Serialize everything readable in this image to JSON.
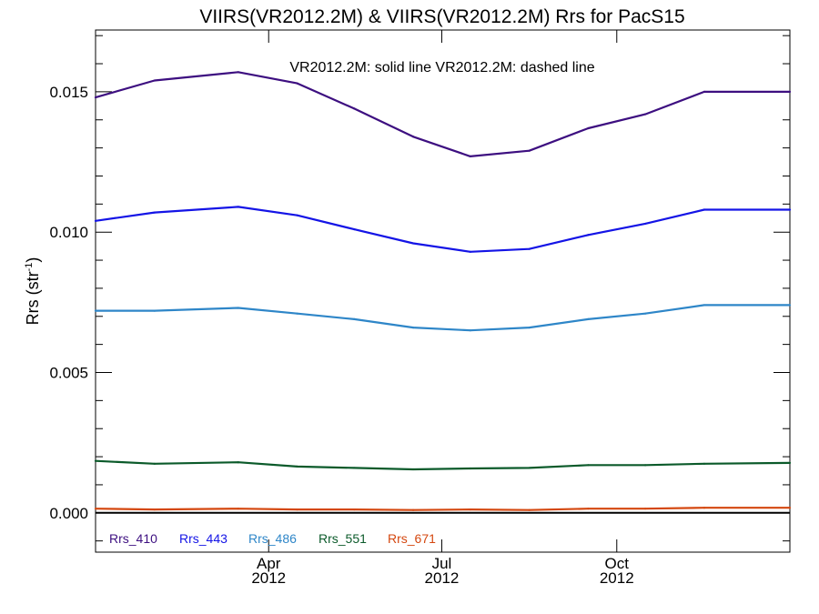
{
  "chart_data": {
    "type": "line",
    "title": "VIIRS(VR2012.2M) & VIIRS(VR2012.2M)  Rrs for PacS15",
    "annotation": "VR2012.2M: solid line   VR2012.2M: dashed line",
    "ylabel": "Rrs (str",
    "ylabel_sup": "-1",
    "ylabel_close": ")",
    "ylim": [
      -0.0014,
      0.0172
    ],
    "y_ticks": [
      0.0,
      0.005,
      0.01,
      0.015
    ],
    "y_tick_labels": [
      "0.000",
      "0.005",
      "0.010",
      "0.015"
    ],
    "xlim": [
      "2012-01-01",
      "2012-12-31"
    ],
    "x_ticks": [
      {
        "date": "2012-04-01",
        "month": "Apr",
        "year": "2012"
      },
      {
        "date": "2012-07-01",
        "month": "Jul",
        "year": "2012"
      },
      {
        "date": "2012-10-01",
        "month": "Oct",
        "year": "2012"
      }
    ],
    "x": [
      "2012-01-01",
      "2012-02-01",
      "2012-03-16",
      "2012-04-16",
      "2012-05-16",
      "2012-06-16",
      "2012-07-16",
      "2012-08-16",
      "2012-09-16",
      "2012-10-16",
      "2012-11-16",
      "2012-12-31"
    ],
    "zero_line": 0,
    "series": [
      {
        "name": "Rrs_410",
        "color": "#3d0f80",
        "values": [
          0.0148,
          0.0154,
          0.0157,
          0.0153,
          0.0144,
          0.0134,
          0.0127,
          0.0129,
          0.0137,
          0.0142,
          0.015,
          0.015
        ]
      },
      {
        "name": "Rrs_443",
        "color": "#1414e6",
        "values": [
          0.0104,
          0.0107,
          0.0109,
          0.0106,
          0.0101,
          0.0096,
          0.0093,
          0.0094,
          0.0099,
          0.0103,
          0.0108,
          0.0108
        ]
      },
      {
        "name": "Rrs_486",
        "color": "#2e86c8",
        "values": [
          0.0072,
          0.0072,
          0.0073,
          0.0071,
          0.0069,
          0.0066,
          0.0065,
          0.0066,
          0.0069,
          0.0071,
          0.0074,
          0.0074
        ]
      },
      {
        "name": "Rrs_551",
        "color": "#0b5a2a",
        "values": [
          0.00185,
          0.00175,
          0.0018,
          0.00165,
          0.0016,
          0.00155,
          0.00158,
          0.0016,
          0.0017,
          0.0017,
          0.00175,
          0.00178
        ]
      },
      {
        "name": "Rrs_671",
        "color": "#d4470f",
        "values": [
          0.00015,
          0.00012,
          0.00015,
          0.00012,
          0.00012,
          0.0001,
          0.00012,
          0.0001,
          0.00015,
          0.00015,
          0.00018,
          0.00018
        ]
      }
    ]
  }
}
